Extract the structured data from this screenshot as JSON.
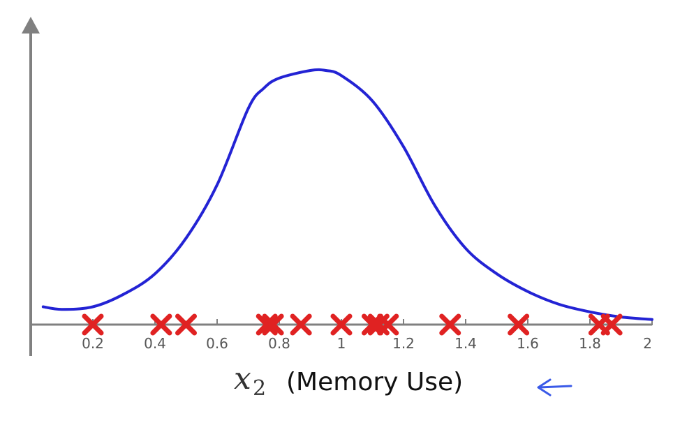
{
  "chart_data": {
    "type": "scatter",
    "xlim": [
      0,
      2
    ],
    "xticks": [
      0.2,
      0.4,
      0.6,
      0.8,
      1,
      1.2,
      1.4,
      1.6,
      1.8,
      2
    ],
    "xtick_labels": [
      "0.2",
      "0.4",
      "0.6",
      "0.8",
      "1",
      "1.2",
      "1.4",
      "1.6",
      "1.8",
      "2"
    ],
    "xlabel_var": "x",
    "xlabel_sub": "2",
    "xlabel_text": "(Memory Use)",
    "grid": false,
    "points_x": [
      0.2,
      0.42,
      0.5,
      0.76,
      0.78,
      0.87,
      1.0,
      1.1,
      1.12,
      1.15,
      1.35,
      1.57,
      1.83,
      1.87
    ],
    "curve": {
      "type": "density",
      "x": [
        0.04,
        0.1,
        0.2,
        0.3,
        0.4,
        0.5,
        0.6,
        0.7,
        0.75,
        0.8,
        0.9,
        0.95,
        1.0,
        1.1,
        1.2,
        1.3,
        1.4,
        1.5,
        1.6,
        1.7,
        1.8,
        1.9,
        2.0
      ],
      "y": [
        0.07,
        0.06,
        0.07,
        0.12,
        0.2,
        0.34,
        0.55,
        0.85,
        0.93,
        0.97,
        1.0,
        1.0,
        0.98,
        0.88,
        0.7,
        0.47,
        0.3,
        0.2,
        0.13,
        0.08,
        0.05,
        0.03,
        0.02
      ]
    },
    "colors": {
      "curve": "#2323d4",
      "markers": "#e02222",
      "axis": "#808080",
      "annotation_arrow": "#3a5ae8"
    }
  }
}
